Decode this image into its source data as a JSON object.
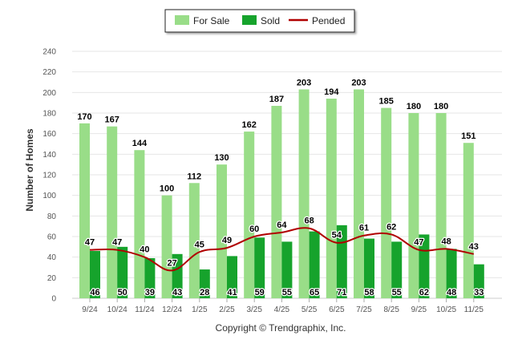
{
  "chart_data": {
    "type": "bar",
    "categories": [
      "9/24",
      "10/24",
      "11/24",
      "12/24",
      "1/25",
      "2/25",
      "3/25",
      "4/25",
      "5/25",
      "6/25",
      "7/25",
      "8/25",
      "9/25",
      "10/25",
      "11/25"
    ],
    "series": [
      {
        "name": "For Sale",
        "type": "bar",
        "color": "#99dd88",
        "values": [
          170,
          167,
          144,
          100,
          112,
          130,
          162,
          187,
          203,
          194,
          203,
          185,
          180,
          180,
          151
        ]
      },
      {
        "name": "Sold",
        "type": "bar",
        "color": "#16a32c",
        "values": [
          46,
          50,
          39,
          43,
          28,
          41,
          59,
          55,
          65,
          71,
          58,
          55,
          62,
          48,
          33
        ]
      },
      {
        "name": "Pended",
        "type": "line",
        "color": "#b00000",
        "values": [
          47,
          47,
          40,
          27,
          45,
          49,
          60,
          64,
          68,
          54,
          61,
          62,
          47,
          48,
          43
        ]
      }
    ],
    "ylabel": "Number of Homes",
    "ylim": [
      0,
      240
    ],
    "yticks": [
      0,
      20,
      40,
      60,
      80,
      100,
      120,
      140,
      160,
      180,
      200,
      220,
      240
    ],
    "grid": true,
    "legend_position": "top-center",
    "credit": "Copyright © Trendgraphix, Inc."
  }
}
